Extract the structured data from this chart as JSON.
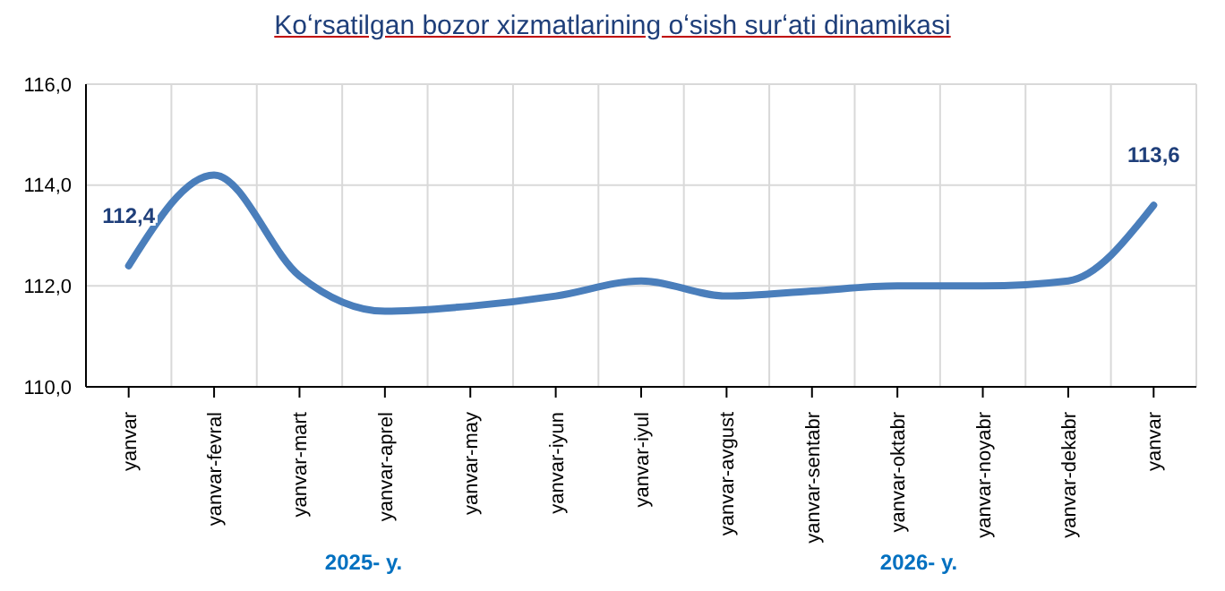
{
  "chart_data": {
    "type": "line",
    "title": "Koʻrsatilgan bozor xizmatlarining oʻsish surʻati dinamikasi",
    "categories": [
      "yanvar",
      "yanvar-fevral",
      "yanvar-mart",
      "yanvar-aprel",
      "yanvar-may",
      "yanvar-iyun",
      "yanvar-iyul",
      "yanvar-avgust",
      "yanvar-sentabr",
      "yanvar-oktabr",
      "yanvar-noyabr",
      "yanvar-dekabr",
      "yanvar"
    ],
    "series": [
      {
        "color": "#4a7ebb",
        "values": [
          112.4,
          114.2,
          112.2,
          111.5,
          111.6,
          111.8,
          112.1,
          111.8,
          111.9,
          112.0,
          112.0,
          112.1,
          113.6
        ],
        "value_labels": [
          "112,4",
          null,
          null,
          null,
          null,
          null,
          null,
          null,
          null,
          null,
          null,
          null,
          "113,6"
        ]
      }
    ],
    "ylim": [
      110,
      116
    ],
    "yticks": [
      {
        "value": 110,
        "label": "110,0"
      },
      {
        "value": 112,
        "label": "112,0"
      },
      {
        "value": 114,
        "label": "114,0"
      },
      {
        "value": 116,
        "label": "116,0"
      }
    ],
    "grid": true,
    "marker": "none",
    "line_style": "solid",
    "annotations": [
      "2025- y.",
      "2026- y."
    ]
  }
}
